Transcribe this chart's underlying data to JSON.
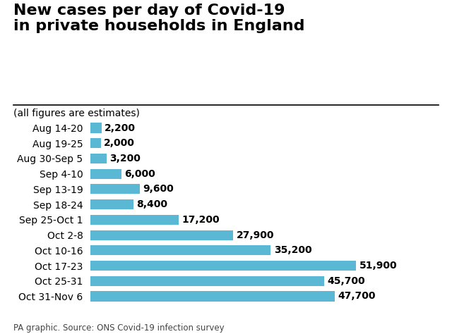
{
  "title": "New cases per day of Covid-19\nin private households in England",
  "subtitle": "(all figures are estimates)",
  "footer": "PA graphic. Source: ONS Covid-19 infection survey",
  "categories": [
    "Aug 14-20",
    "Aug 19-25",
    "Aug 30-Sep 5",
    "Sep 4-10",
    "Sep 13-19",
    "Sep 18-24",
    "Sep 25-Oct 1",
    "Oct 2-8",
    "Oct 10-16",
    "Oct 17-23",
    "Oct 25-31",
    "Oct 31-Nov 6"
  ],
  "values": [
    2200,
    2000,
    3200,
    6000,
    9600,
    8400,
    17200,
    27900,
    35200,
    51900,
    45700,
    47700
  ],
  "labels": [
    "2,200",
    "2,000",
    "3,200",
    "6,000",
    "9,600",
    "8,400",
    "17,200",
    "27,900",
    "35,200",
    "51,900",
    "45,700",
    "47,700"
  ],
  "bar_color": "#5bb8d4",
  "background_color": "#ffffff",
  "title_fontsize": 16,
  "subtitle_fontsize": 10,
  "label_fontsize": 10,
  "category_fontsize": 10,
  "footer_fontsize": 8.5,
  "xlim": [
    0,
    60000
  ]
}
